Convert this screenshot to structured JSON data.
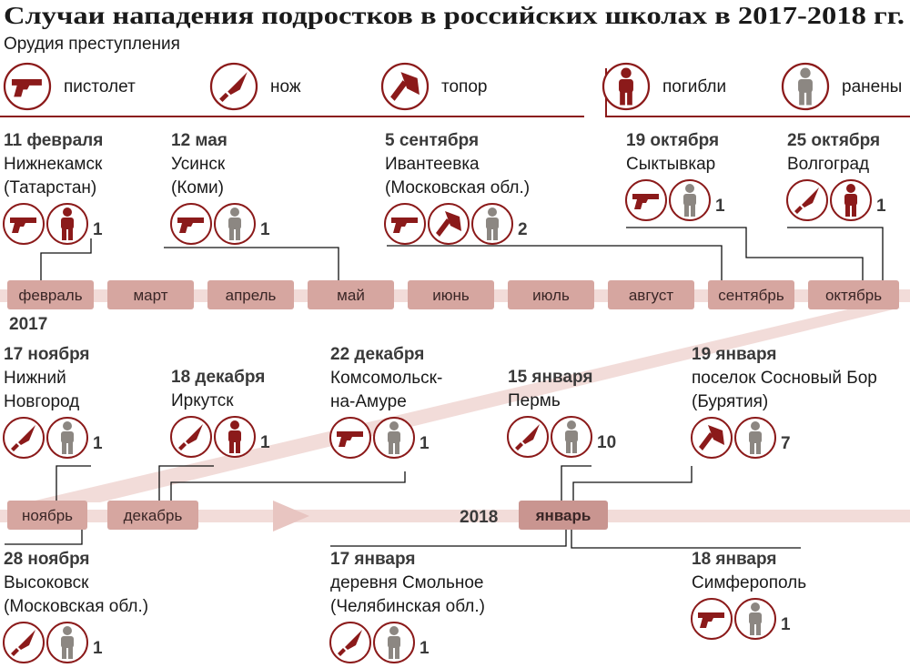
{
  "header": {
    "title": "Случаи нападения подростков в российских школах в 2017-2018 гг.",
    "subtitle": "Орудия преступления"
  },
  "legend": [
    "пистолет",
    "нож",
    "топор",
    "погибли",
    "ранены"
  ],
  "years": [
    "2017",
    "2018"
  ],
  "months": [
    "февраль",
    "март",
    "апрель",
    "май",
    "июнь",
    "июль",
    "август",
    "сентябрь",
    "октябрь",
    "ноябрь",
    "декабрь",
    "январь"
  ],
  "events": [
    {
      "date": "11 февраля",
      "place": [
        "Нижнекамск",
        "(Татарстан)"
      ],
      "count": 1
    },
    {
      "date": "12 мая",
      "place": [
        "Усинск",
        "(Коми)"
      ],
      "count": 1
    },
    {
      "date": "5 сентября",
      "place": [
        "Ивантеевка",
        "(Московская обл.)"
      ],
      "count": 2
    },
    {
      "date": "19 октября",
      "place": [
        "Сыктывкар"
      ],
      "count": 1
    },
    {
      "date": "25 октября",
      "place": [
        "Волгоград"
      ],
      "count": 1
    },
    {
      "date": "17 ноября",
      "place": [
        "Нижний",
        "Новгород"
      ],
      "count": 1
    },
    {
      "date": "18 декабря",
      "place": [
        "Иркутск"
      ],
      "count": 1
    },
    {
      "date": "22 декабря",
      "place": [
        "Комсомольск-",
        "на-Амуре"
      ],
      "count": 1
    },
    {
      "date": "15 января",
      "place": [
        "Пермь"
      ],
      "count": 10
    },
    {
      "date": "19 января",
      "place": [
        "поселок Сосновый Бор",
        "(Бурятия)"
      ],
      "count": 7
    },
    {
      "date": "28 ноября",
      "place": [
        "Высоковск",
        "(Московская обл.)"
      ],
      "count": 1
    },
    {
      "date": "17 января",
      "place": [
        "деревня Смольное",
        "(Челябинская обл.)"
      ],
      "count": 1
    },
    {
      "date": "18 января",
      "place": [
        "Симферополь"
      ],
      "count": 1
    }
  ]
}
